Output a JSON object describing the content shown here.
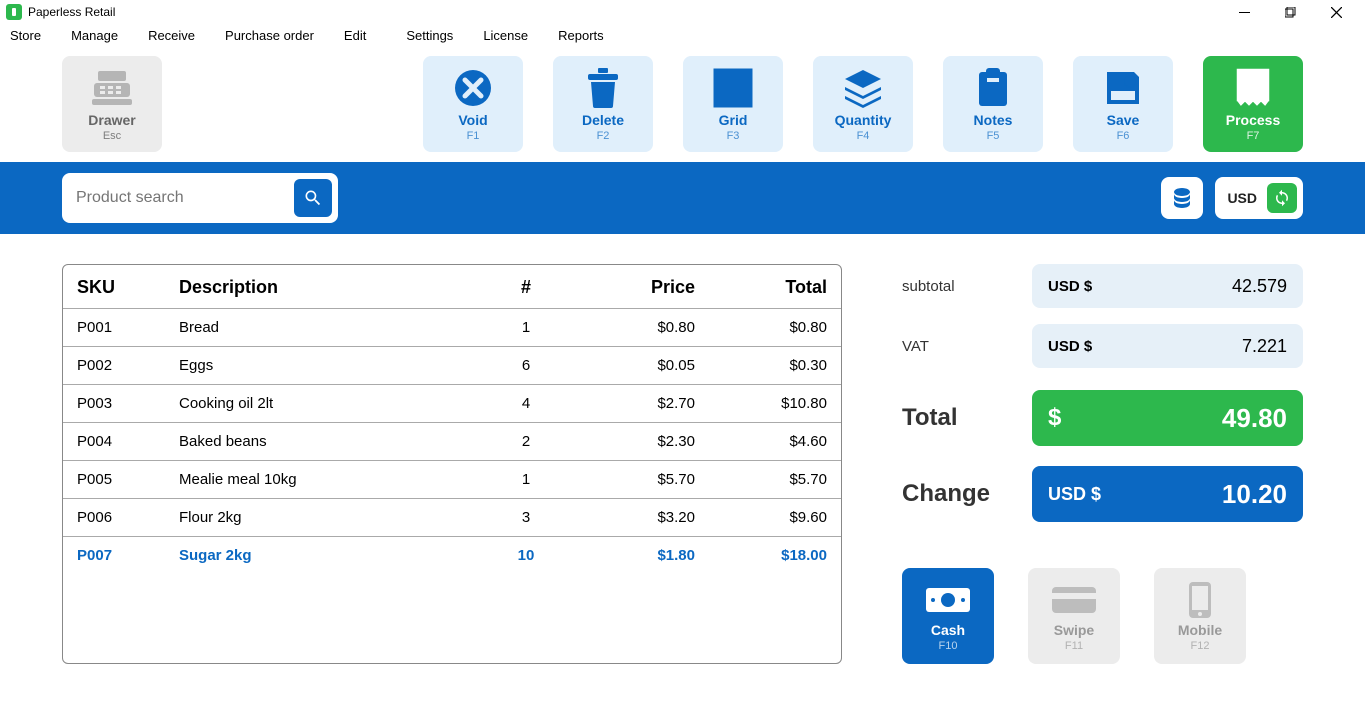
{
  "window": {
    "title": "Paperless Retail"
  },
  "menu": [
    "Store",
    "Manage",
    "Receive",
    "Purchase order",
    "Edit",
    "Settings",
    "License",
    "Reports"
  ],
  "toolbar": {
    "drawer": {
      "label": "Drawer",
      "hotkey": "Esc"
    },
    "void": {
      "label": "Void",
      "hotkey": "F1"
    },
    "delete": {
      "label": "Delete",
      "hotkey": "F2"
    },
    "grid": {
      "label": "Grid",
      "hotkey": "F3"
    },
    "quantity": {
      "label": "Quantity",
      "hotkey": "F4"
    },
    "notes": {
      "label": "Notes",
      "hotkey": "F5"
    },
    "save": {
      "label": "Save",
      "hotkey": "F6"
    },
    "process": {
      "label": "Process",
      "hotkey": "F7"
    }
  },
  "search": {
    "placeholder": "Product search"
  },
  "currency": {
    "code": "USD"
  },
  "table": {
    "headers": {
      "sku": "SKU",
      "desc": "Description",
      "qty": "#",
      "price": "Price",
      "total": "Total"
    },
    "rows": [
      {
        "sku": "P001",
        "desc": "Bread",
        "qty": "1",
        "price": "$0.80",
        "total": "$0.80",
        "active": false
      },
      {
        "sku": "P002",
        "desc": "Eggs",
        "qty": "6",
        "price": "$0.05",
        "total": "$0.30",
        "active": false
      },
      {
        "sku": "P003",
        "desc": "Cooking oil 2lt",
        "qty": "4",
        "price": "$2.70",
        "total": "$10.80",
        "active": false
      },
      {
        "sku": "P004",
        "desc": "Baked beans",
        "qty": "2",
        "price": "$2.30",
        "total": "$4.60",
        "active": false
      },
      {
        "sku": "P005",
        "desc": "Mealie meal 10kg",
        "qty": "1",
        "price": "$5.70",
        "total": "$5.70",
        "active": false
      },
      {
        "sku": "P006",
        "desc": "Flour 2kg",
        "qty": "3",
        "price": "$3.20",
        "total": "$9.60",
        "active": false
      },
      {
        "sku": "P007",
        "desc": "Sugar 2kg",
        "qty": "10",
        "price": "$1.80",
        "total": "$18.00",
        "active": true
      }
    ]
  },
  "totals": {
    "subtotal": {
      "label": "subtotal",
      "curr": "USD $",
      "value": "42.579"
    },
    "vat": {
      "label": "VAT",
      "curr": "USD $",
      "value": "7.221"
    },
    "total": {
      "label": "Total",
      "curr": "$",
      "value": "49.80"
    },
    "change": {
      "label": "Change",
      "curr": "USD $",
      "value": "10.20"
    }
  },
  "payment": {
    "cash": {
      "label": "Cash",
      "hotkey": "F10"
    },
    "swipe": {
      "label": "Swipe",
      "hotkey": "F11"
    },
    "mobile": {
      "label": "Mobile",
      "hotkey": "F12"
    }
  }
}
